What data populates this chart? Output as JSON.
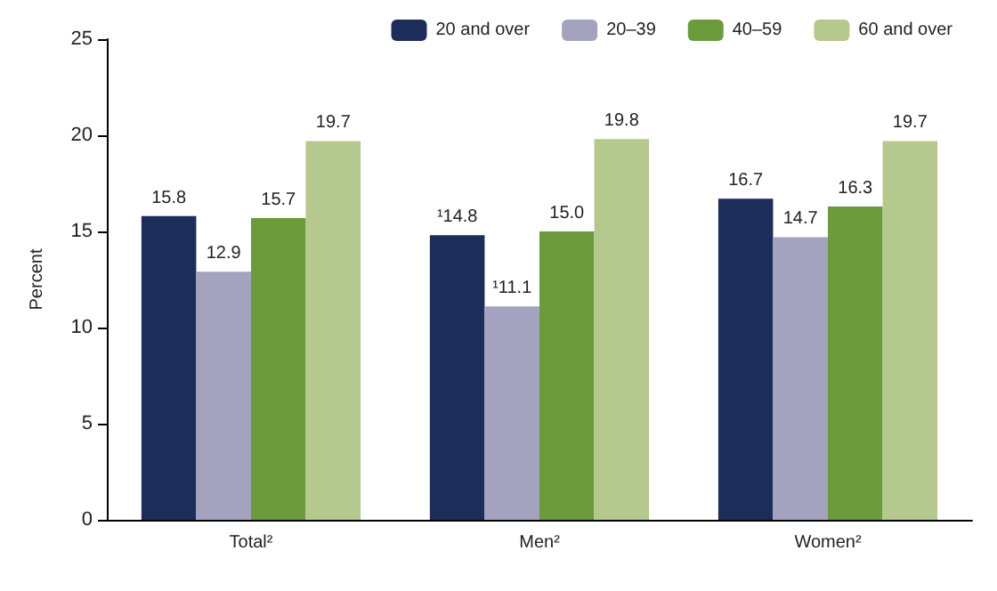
{
  "chart_data": {
    "type": "bar",
    "ylabel": "Percent",
    "categories": [
      "Total²",
      "Men²",
      "Women²"
    ],
    "series": [
      {
        "name": "20 and over",
        "color": "#1c2d5a",
        "values": [
          15.8,
          14.8,
          16.7
        ],
        "value_labels": [
          "15.8",
          "¹14.8",
          "16.7"
        ]
      },
      {
        "name": "20–39",
        "color": "#a4a3bf",
        "values": [
          12.9,
          11.1,
          14.7
        ],
        "value_labels": [
          "12.9",
          "¹11.1",
          "14.7"
        ]
      },
      {
        "name": "40–59",
        "color": "#6b9b3d",
        "values": [
          15.7,
          15.0,
          16.3
        ],
        "value_labels": [
          "15.7",
          "15.0",
          "16.3"
        ]
      },
      {
        "name": "60 and over",
        "color": "#b5c98e",
        "values": [
          19.7,
          19.8,
          19.7
        ],
        "value_labels": [
          "19.7",
          "19.8",
          "19.7"
        ]
      }
    ],
    "ylim": [
      0,
      25
    ],
    "yticks": [
      0,
      5,
      10,
      15,
      20,
      25
    ],
    "grid": false,
    "legend": "top right"
  }
}
